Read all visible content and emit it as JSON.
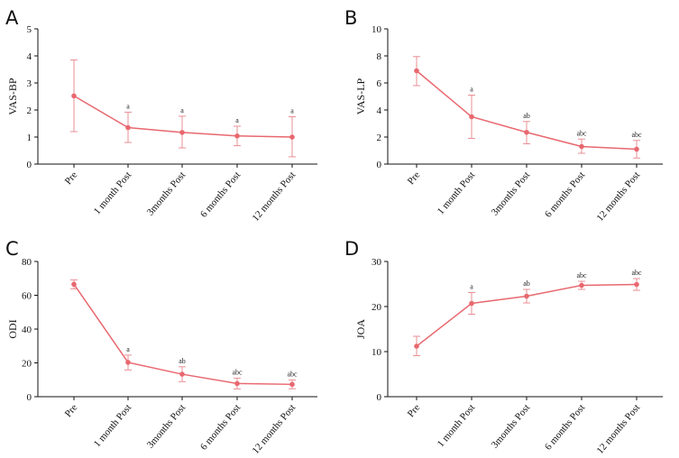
{
  "colors": {
    "series": "#e8686f",
    "errorbar": "#e98f95",
    "axis": "#111111"
  },
  "chart_data": [
    {
      "type": "line",
      "panel": "A",
      "ylabel": "VAS-BP",
      "xlabel": "",
      "categories": [
        "Pre",
        "1 month Post",
        "3months Post",
        "6 months Post",
        "12 months Post"
      ],
      "values": [
        2.52,
        1.35,
        1.17,
        1.04,
        1.0
      ],
      "err_low": [
        1.2,
        0.8,
        0.6,
        0.68,
        0.27
      ],
      "err_high": [
        3.85,
        1.92,
        1.77,
        1.4,
        1.75
      ],
      "annotations": [
        "",
        "a",
        "a",
        "a",
        "a"
      ],
      "ylim": [
        0,
        5
      ],
      "yticks": [
        0,
        1,
        2,
        3,
        4,
        5
      ],
      "ytick_labels": [
        "0",
        "1",
        "2",
        "3",
        "4",
        "5"
      ]
    },
    {
      "type": "line",
      "panel": "B",
      "ylabel": "VAS-LP",
      "xlabel": "",
      "categories": [
        "Pre",
        "1 month Post",
        "3months Post",
        "6 months Post",
        "12 months Post"
      ],
      "values": [
        6.9,
        3.5,
        2.35,
        1.3,
        1.1
      ],
      "err_low": [
        5.8,
        1.9,
        1.5,
        0.8,
        0.45
      ],
      "err_high": [
        7.95,
        5.1,
        3.15,
        1.85,
        1.75
      ],
      "annotations": [
        "",
        "a",
        "ab",
        "abc",
        "abc"
      ],
      "ylim": [
        0,
        10
      ],
      "yticks": [
        0,
        2,
        4,
        6,
        8,
        10
      ],
      "ytick_labels": [
        "0",
        "2",
        "4",
        "6",
        "8",
        "10"
      ]
    },
    {
      "type": "line",
      "panel": "C",
      "ylabel": "ODI",
      "xlabel": "",
      "categories": [
        "Pre",
        "1 month Post",
        "3months Post",
        "6 months Post",
        "12 months Post"
      ],
      "values": [
        66.5,
        20.3,
        13.3,
        7.8,
        7.3
      ],
      "err_low": [
        63.8,
        15.8,
        8.9,
        4.6,
        4.7
      ],
      "err_high": [
        69.1,
        24.6,
        17.7,
        11.0,
        9.9
      ],
      "annotations": [
        "",
        "a",
        "ab",
        "abc",
        "abc"
      ],
      "ylim": [
        0,
        80
      ],
      "yticks": [
        0,
        20,
        40,
        60,
        80
      ],
      "ytick_labels": [
        "0",
        "20",
        "40",
        "60",
        "80"
      ]
    },
    {
      "type": "line",
      "panel": "D",
      "ylabel": "JOA",
      "xlabel": "",
      "categories": [
        "Pre",
        "1 month Post",
        "3months Post",
        "6 months Post",
        "12 months Post"
      ],
      "values": [
        11.2,
        20.7,
        22.3,
        24.7,
        24.9
      ],
      "err_low": [
        9.1,
        18.3,
        20.8,
        23.8,
        23.6
      ],
      "err_high": [
        13.4,
        23.1,
        23.8,
        25.6,
        26.2
      ],
      "annotations": [
        "",
        "a",
        "ab",
        "abc",
        "abc"
      ],
      "ylim": [
        0,
        30
      ],
      "yticks": [
        0,
        10,
        20,
        30
      ],
      "ytick_labels": [
        "0",
        "10",
        "20",
        "30"
      ]
    }
  ]
}
